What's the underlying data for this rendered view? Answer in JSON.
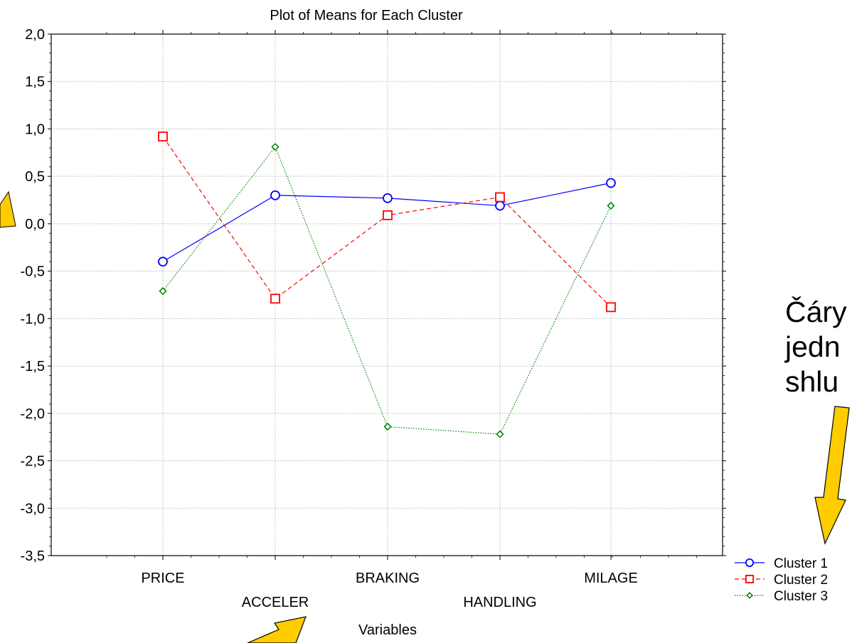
{
  "chart_data": {
    "type": "line",
    "title": "Plot of Means for Each Cluster",
    "xlabel": "Variables",
    "ylabel": "",
    "categories": [
      "PRICE",
      "ACCELER",
      "BRAKING",
      "HANDLING",
      "MILAGE"
    ],
    "ylim": [
      -3.5,
      2.0
    ],
    "yticks": [
      "2,0",
      "1,5",
      "1,0",
      "0,5",
      "0,0",
      "-0,5",
      "-1,0",
      "-1,5",
      "-2,0",
      "-2,5",
      "-3,0",
      "-3,5"
    ],
    "grid": true,
    "legend_position": "bottom-right",
    "series": [
      {
        "name": "Cluster 1",
        "values": [
          -0.4,
          0.3,
          0.27,
          0.19,
          0.43
        ],
        "color": "#0000ff",
        "marker": "circle",
        "line": "solid"
      },
      {
        "name": "Cluster 2",
        "values": [
          0.92,
          -0.79,
          0.09,
          0.28,
          -0.88
        ],
        "color": "#ff0000",
        "marker": "square",
        "line": "dashed"
      },
      {
        "name": "Cluster 3",
        "values": [
          -0.71,
          0.81,
          -2.14,
          -2.22,
          0.19
        ],
        "color": "#008000",
        "marker": "diamond",
        "line": "dotted"
      }
    ]
  },
  "annotations": {
    "text_lines": [
      "Čáry",
      "jedn",
      "shlu"
    ],
    "arrow_color": "#ffcc00"
  }
}
